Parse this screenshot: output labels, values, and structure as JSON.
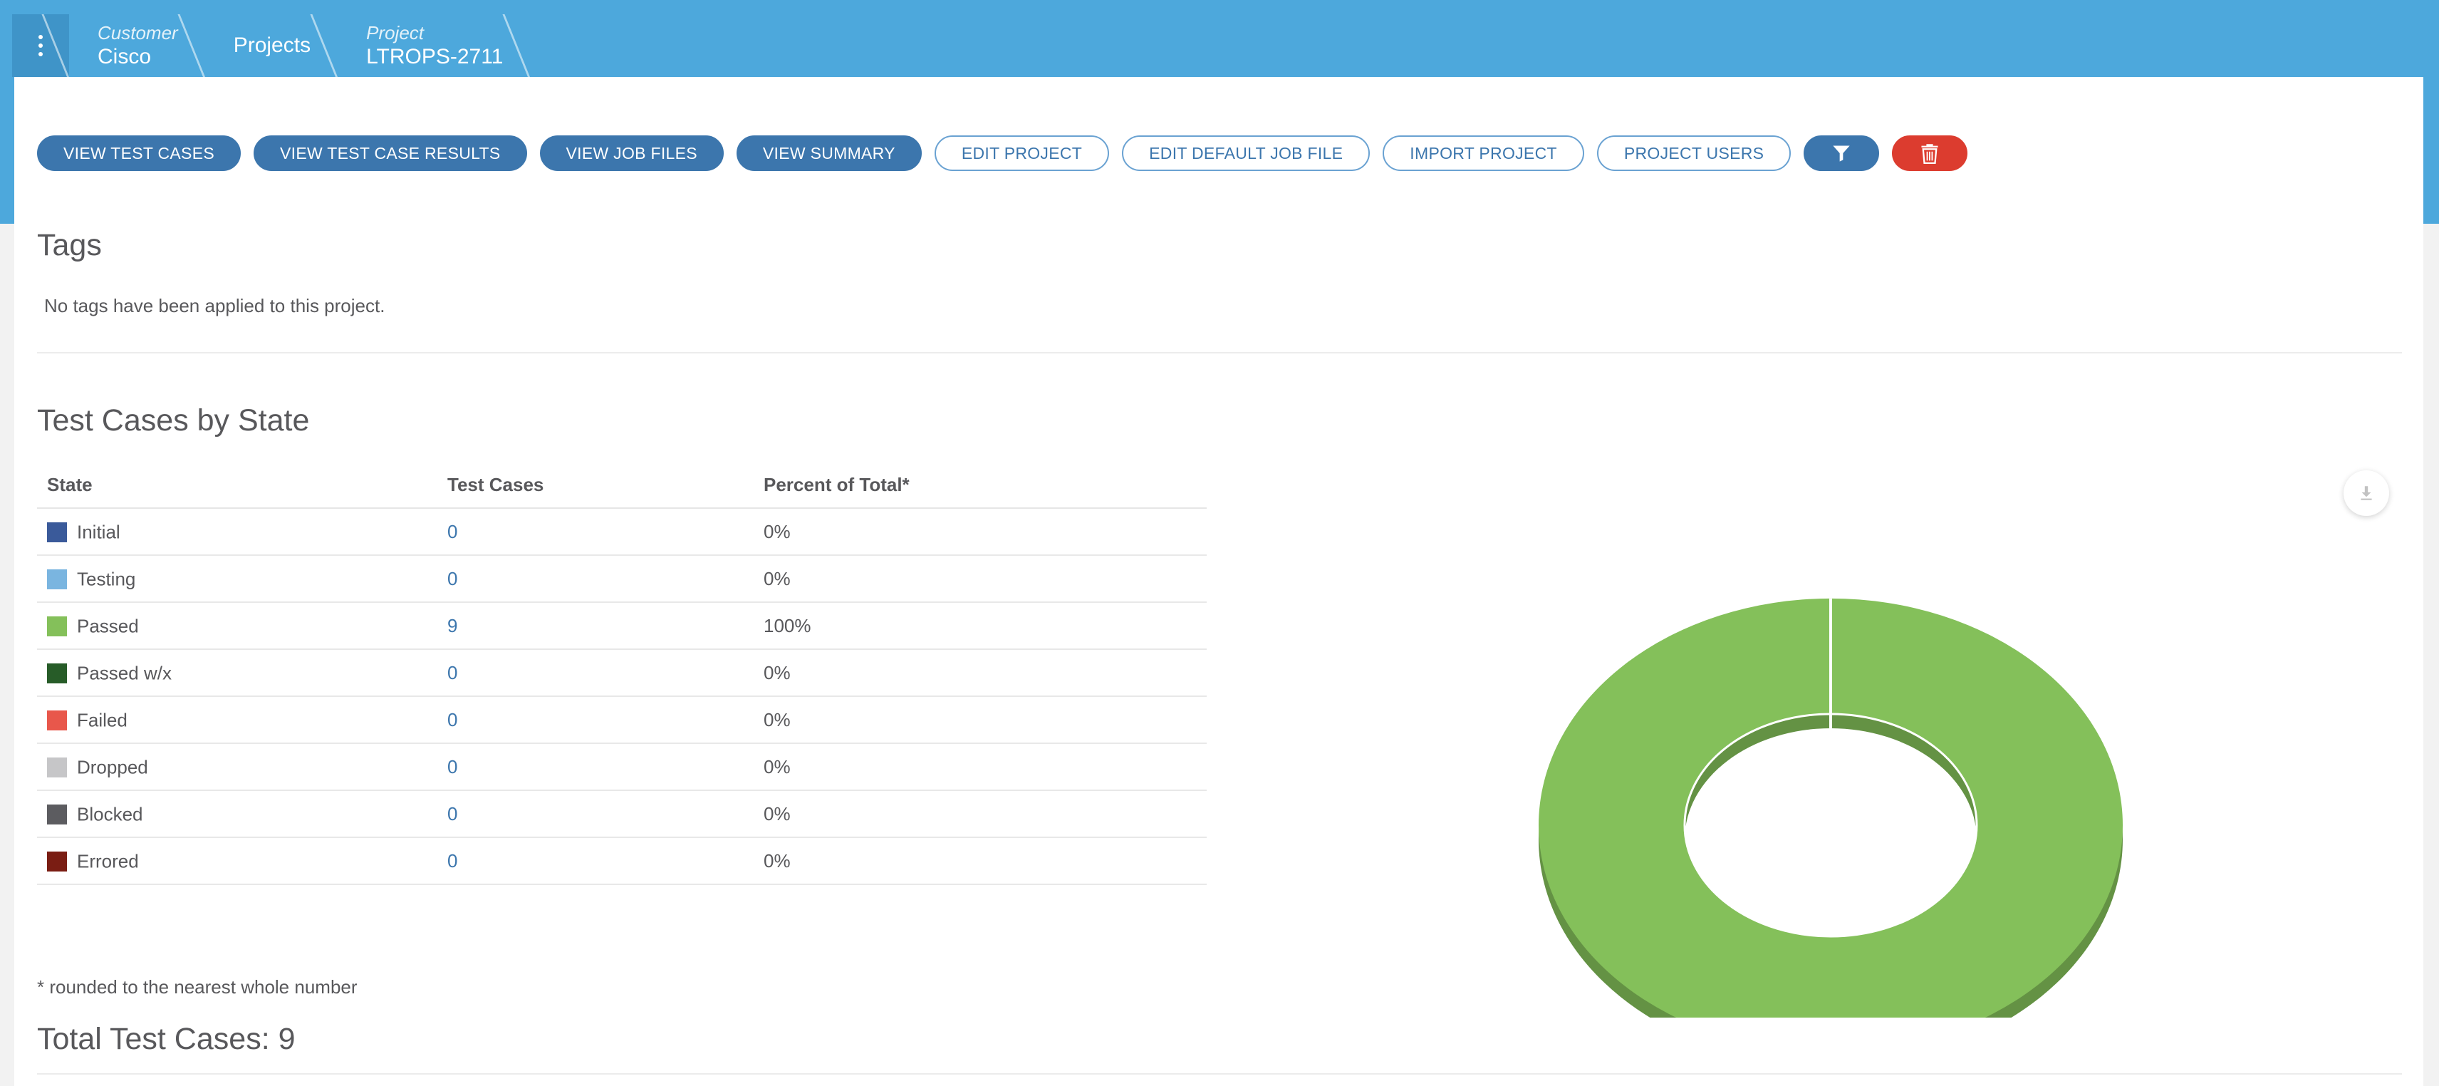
{
  "breadcrumb": {
    "customer_label": "Customer",
    "customer_value": "Cisco",
    "projects": "Projects",
    "project_label": "Project",
    "project_value": "LTROPS-2711"
  },
  "toolbar": {
    "view_test_cases": "VIEW TEST CASES",
    "view_test_case_results": "VIEW TEST CASE RESULTS",
    "view_job_files": "VIEW JOB FILES",
    "view_summary": "VIEW SUMMARY",
    "edit_project": "EDIT PROJECT",
    "edit_default_job_file": "EDIT DEFAULT JOB FILE",
    "import_project": "IMPORT PROJECT",
    "project_users": "PROJECT USERS",
    "filter_icon": "filter-icon",
    "delete_icon": "trash-icon"
  },
  "tags": {
    "title": "Tags",
    "empty_message": "No tags have been applied to this project."
  },
  "test_cases_by_state": {
    "title": "Test Cases by State",
    "columns": [
      "State",
      "Test Cases",
      "Percent of Total*"
    ],
    "rows": [
      {
        "state": "Initial",
        "count": "0",
        "percent": "0%",
        "color": "#3a5a9a"
      },
      {
        "state": "Testing",
        "count": "0",
        "percent": "0%",
        "color": "#7ab5e0"
      },
      {
        "state": "Passed",
        "count": "9",
        "percent": "100%",
        "color": "#84c05a"
      },
      {
        "state": "Passed w/x",
        "count": "0",
        "percent": "0%",
        "color": "#275c28"
      },
      {
        "state": "Failed",
        "count": "0",
        "percent": "0%",
        "color": "#e8574b"
      },
      {
        "state": "Dropped",
        "count": "0",
        "percent": "0%",
        "color": "#c6c6c8"
      },
      {
        "state": "Blocked",
        "count": "0",
        "percent": "0%",
        "color": "#5c5c60"
      },
      {
        "state": "Errored",
        "count": "0",
        "percent": "0%",
        "color": "#7a1d13"
      }
    ],
    "footnote": "* rounded to the nearest whole number",
    "total": "Total Test Cases: 9"
  },
  "chart_data": {
    "type": "pie",
    "style": "3d-donut",
    "categories": [
      "Initial",
      "Testing",
      "Passed",
      "Passed w/x",
      "Failed",
      "Dropped",
      "Blocked",
      "Errored"
    ],
    "values": [
      0,
      0,
      9,
      0,
      0,
      0,
      0,
      0
    ],
    "colors": [
      "#3a5a9a",
      "#7ab5e0",
      "#84c05a",
      "#275c28",
      "#e8574b",
      "#c6c6c8",
      "#5c5c60",
      "#7a1d13"
    ],
    "download_icon": "download-icon"
  }
}
